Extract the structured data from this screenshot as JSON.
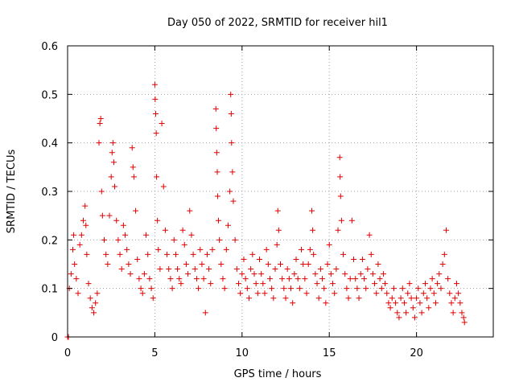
{
  "chart_data": {
    "type": "scatter",
    "title": "Day 050 of 2022, SRMTID for receiver hil1",
    "xlabel": "GPS time / hours",
    "ylabel": "SRMTID / TECUs",
    "xlim": [
      0,
      24.4
    ],
    "ylim": [
      0,
      0.6
    ],
    "x_ticks": [
      0,
      5,
      10,
      15,
      20
    ],
    "x_tick_labels": [
      "0",
      "5",
      "10",
      "15",
      "20"
    ],
    "y_ticks": [
      0,
      0.1,
      0.2,
      0.3,
      0.4,
      0.5,
      0.6
    ],
    "y_tick_labels": [
      "0",
      "0.1",
      "0.2",
      "0.3",
      "0.4",
      "0.5",
      "0.6"
    ],
    "grid": true,
    "marker": "plus",
    "series": [
      {
        "name": "hil1",
        "color": "#e00000",
        "points": [
          [
            0.0,
            0.0
          ],
          [
            0.05,
            0.0
          ],
          [
            0.1,
            0.1
          ],
          [
            0.2,
            0.13
          ],
          [
            0.3,
            0.18
          ],
          [
            0.35,
            0.21
          ],
          [
            0.4,
            0.15
          ],
          [
            0.5,
            0.12
          ],
          [
            0.6,
            0.09
          ],
          [
            0.7,
            0.19
          ],
          [
            0.8,
            0.21
          ],
          [
            0.9,
            0.24
          ],
          [
            1.0,
            0.27
          ],
          [
            1.05,
            0.23
          ],
          [
            1.1,
            0.17
          ],
          [
            1.2,
            0.11
          ],
          [
            1.3,
            0.08
          ],
          [
            1.4,
            0.06
          ],
          [
            1.5,
            0.05
          ],
          [
            1.6,
            0.07
          ],
          [
            1.7,
            0.09
          ],
          [
            1.8,
            0.4
          ],
          [
            1.85,
            0.44
          ],
          [
            1.9,
            0.45
          ],
          [
            1.95,
            0.3
          ],
          [
            2.0,
            0.25
          ],
          [
            2.1,
            0.2
          ],
          [
            2.2,
            0.17
          ],
          [
            2.3,
            0.15
          ],
          [
            2.4,
            0.25
          ],
          [
            2.5,
            0.33
          ],
          [
            2.55,
            0.38
          ],
          [
            2.6,
            0.4
          ],
          [
            2.65,
            0.36
          ],
          [
            2.7,
            0.31
          ],
          [
            2.8,
            0.24
          ],
          [
            2.9,
            0.2
          ],
          [
            3.0,
            0.17
          ],
          [
            3.1,
            0.14
          ],
          [
            3.2,
            0.23
          ],
          [
            3.3,
            0.21
          ],
          [
            3.4,
            0.18
          ],
          [
            3.5,
            0.15
          ],
          [
            3.6,
            0.13
          ],
          [
            3.7,
            0.39
          ],
          [
            3.75,
            0.35
          ],
          [
            3.8,
            0.33
          ],
          [
            3.9,
            0.26
          ],
          [
            4.0,
            0.16
          ],
          [
            4.1,
            0.12
          ],
          [
            4.2,
            0.1
          ],
          [
            4.3,
            0.09
          ],
          [
            4.4,
            0.13
          ],
          [
            4.5,
            0.21
          ],
          [
            4.6,
            0.17
          ],
          [
            4.7,
            0.12
          ],
          [
            4.8,
            0.1
          ],
          [
            4.9,
            0.08
          ],
          [
            5.0,
            0.52
          ],
          [
            5.02,
            0.49
          ],
          [
            5.05,
            0.46
          ],
          [
            5.08,
            0.42
          ],
          [
            5.1,
            0.33
          ],
          [
            5.15,
            0.24
          ],
          [
            5.2,
            0.18
          ],
          [
            5.3,
            0.14
          ],
          [
            5.4,
            0.44
          ],
          [
            5.5,
            0.31
          ],
          [
            5.6,
            0.22
          ],
          [
            5.7,
            0.17
          ],
          [
            5.8,
            0.14
          ],
          [
            5.9,
            0.12
          ],
          [
            6.0,
            0.1
          ],
          [
            6.1,
            0.2
          ],
          [
            6.2,
            0.17
          ],
          [
            6.3,
            0.14
          ],
          [
            6.4,
            0.12
          ],
          [
            6.5,
            0.11
          ],
          [
            6.6,
            0.22
          ],
          [
            6.7,
            0.19
          ],
          [
            6.8,
            0.15
          ],
          [
            6.9,
            0.13
          ],
          [
            7.0,
            0.26
          ],
          [
            7.1,
            0.21
          ],
          [
            7.2,
            0.17
          ],
          [
            7.3,
            0.14
          ],
          [
            7.4,
            0.12
          ],
          [
            7.5,
            0.1
          ],
          [
            7.6,
            0.18
          ],
          [
            7.7,
            0.15
          ],
          [
            7.8,
            0.12
          ],
          [
            7.9,
            0.05
          ],
          [
            8.0,
            0.17
          ],
          [
            8.1,
            0.14
          ],
          [
            8.2,
            0.11
          ],
          [
            8.3,
            0.18
          ],
          [
            8.5,
            0.47
          ],
          [
            8.52,
            0.43
          ],
          [
            8.55,
            0.38
          ],
          [
            8.58,
            0.34
          ],
          [
            8.6,
            0.29
          ],
          [
            8.65,
            0.24
          ],
          [
            8.7,
            0.2
          ],
          [
            8.8,
            0.15
          ],
          [
            8.9,
            0.12
          ],
          [
            9.0,
            0.1
          ],
          [
            9.1,
            0.18
          ],
          [
            9.2,
            0.23
          ],
          [
            9.3,
            0.3
          ],
          [
            9.35,
            0.5
          ],
          [
            9.38,
            0.46
          ],
          [
            9.4,
            0.4
          ],
          [
            9.45,
            0.34
          ],
          [
            9.5,
            0.28
          ],
          [
            9.6,
            0.2
          ],
          [
            9.7,
            0.14
          ],
          [
            9.8,
            0.11
          ],
          [
            9.9,
            0.09
          ],
          [
            10.0,
            0.13
          ],
          [
            10.1,
            0.16
          ],
          [
            10.2,
            0.12
          ],
          [
            10.3,
            0.1
          ],
          [
            10.4,
            0.08
          ],
          [
            10.5,
            0.14
          ],
          [
            10.6,
            0.17
          ],
          [
            10.7,
            0.13
          ],
          [
            10.8,
            0.11
          ],
          [
            10.9,
            0.09
          ],
          [
            11.0,
            0.16
          ],
          [
            11.1,
            0.13
          ],
          [
            11.2,
            0.11
          ],
          [
            11.3,
            0.09
          ],
          [
            11.4,
            0.18
          ],
          [
            11.5,
            0.15
          ],
          [
            11.6,
            0.12
          ],
          [
            11.7,
            0.1
          ],
          [
            11.8,
            0.08
          ],
          [
            11.9,
            0.14
          ],
          [
            12.0,
            0.19
          ],
          [
            12.05,
            0.26
          ],
          [
            12.1,
            0.22
          ],
          [
            12.2,
            0.15
          ],
          [
            12.3,
            0.12
          ],
          [
            12.4,
            0.1
          ],
          [
            12.5,
            0.08
          ],
          [
            12.6,
            0.14
          ],
          [
            12.7,
            0.12
          ],
          [
            12.8,
            0.1
          ],
          [
            12.9,
            0.07
          ],
          [
            13.0,
            0.13
          ],
          [
            13.1,
            0.16
          ],
          [
            13.2,
            0.12
          ],
          [
            13.3,
            0.1
          ],
          [
            13.4,
            0.18
          ],
          [
            13.5,
            0.15
          ],
          [
            13.6,
            0.12
          ],
          [
            13.7,
            0.09
          ],
          [
            13.8,
            0.15
          ],
          [
            13.9,
            0.18
          ],
          [
            14.0,
            0.26
          ],
          [
            14.05,
            0.22
          ],
          [
            14.1,
            0.17
          ],
          [
            14.2,
            0.13
          ],
          [
            14.3,
            0.11
          ],
          [
            14.4,
            0.08
          ],
          [
            14.5,
            0.14
          ],
          [
            14.6,
            0.12
          ],
          [
            14.7,
            0.1
          ],
          [
            14.8,
            0.07
          ],
          [
            14.9,
            0.15
          ],
          [
            15.0,
            0.19
          ],
          [
            15.1,
            0.13
          ],
          [
            15.2,
            0.11
          ],
          [
            15.3,
            0.09
          ],
          [
            15.4,
            0.14
          ],
          [
            15.5,
            0.22
          ],
          [
            15.6,
            0.37
          ],
          [
            15.62,
            0.33
          ],
          [
            15.65,
            0.29
          ],
          [
            15.7,
            0.24
          ],
          [
            15.8,
            0.17
          ],
          [
            15.9,
            0.13
          ],
          [
            16.0,
            0.1
          ],
          [
            16.1,
            0.08
          ],
          [
            16.2,
            0.12
          ],
          [
            16.3,
            0.24
          ],
          [
            16.4,
            0.16
          ],
          [
            16.5,
            0.12
          ],
          [
            16.6,
            0.1
          ],
          [
            16.7,
            0.08
          ],
          [
            16.8,
            0.13
          ],
          [
            16.9,
            0.16
          ],
          [
            17.0,
            0.12
          ],
          [
            17.1,
            0.1
          ],
          [
            17.2,
            0.14
          ],
          [
            17.3,
            0.21
          ],
          [
            17.4,
            0.17
          ],
          [
            17.5,
            0.13
          ],
          [
            17.6,
            0.11
          ],
          [
            17.7,
            0.09
          ],
          [
            17.8,
            0.15
          ],
          [
            17.9,
            0.12
          ],
          [
            18.0,
            0.1
          ],
          [
            18.1,
            0.13
          ],
          [
            18.2,
            0.11
          ],
          [
            18.3,
            0.09
          ],
          [
            18.4,
            0.07
          ],
          [
            18.5,
            0.06
          ],
          [
            18.6,
            0.08
          ],
          [
            18.7,
            0.1
          ],
          [
            18.8,
            0.07
          ],
          [
            18.9,
            0.05
          ],
          [
            19.0,
            0.04
          ],
          [
            19.1,
            0.08
          ],
          [
            19.2,
            0.1
          ],
          [
            19.3,
            0.07
          ],
          [
            19.4,
            0.05
          ],
          [
            19.5,
            0.09
          ],
          [
            19.6,
            0.11
          ],
          [
            19.7,
            0.08
          ],
          [
            19.8,
            0.06
          ],
          [
            19.9,
            0.04
          ],
          [
            20.0,
            0.08
          ],
          [
            20.1,
            0.1
          ],
          [
            20.2,
            0.07
          ],
          [
            20.3,
            0.05
          ],
          [
            20.4,
            0.09
          ],
          [
            20.5,
            0.11
          ],
          [
            20.6,
            0.08
          ],
          [
            20.7,
            0.06
          ],
          [
            20.8,
            0.1
          ],
          [
            20.9,
            0.12
          ],
          [
            21.0,
            0.09
          ],
          [
            21.1,
            0.07
          ],
          [
            21.2,
            0.11
          ],
          [
            21.3,
            0.13
          ],
          [
            21.4,
            0.1
          ],
          [
            21.5,
            0.15
          ],
          [
            21.6,
            0.17
          ],
          [
            21.7,
            0.22
          ],
          [
            21.8,
            0.12
          ],
          [
            21.9,
            0.09
          ],
          [
            22.0,
            0.07
          ],
          [
            22.1,
            0.05
          ],
          [
            22.2,
            0.08
          ],
          [
            22.3,
            0.11
          ],
          [
            22.4,
            0.09
          ],
          [
            22.5,
            0.07
          ],
          [
            22.6,
            0.05
          ],
          [
            22.7,
            0.04
          ],
          [
            22.75,
            0.03
          ]
        ]
      }
    ]
  }
}
